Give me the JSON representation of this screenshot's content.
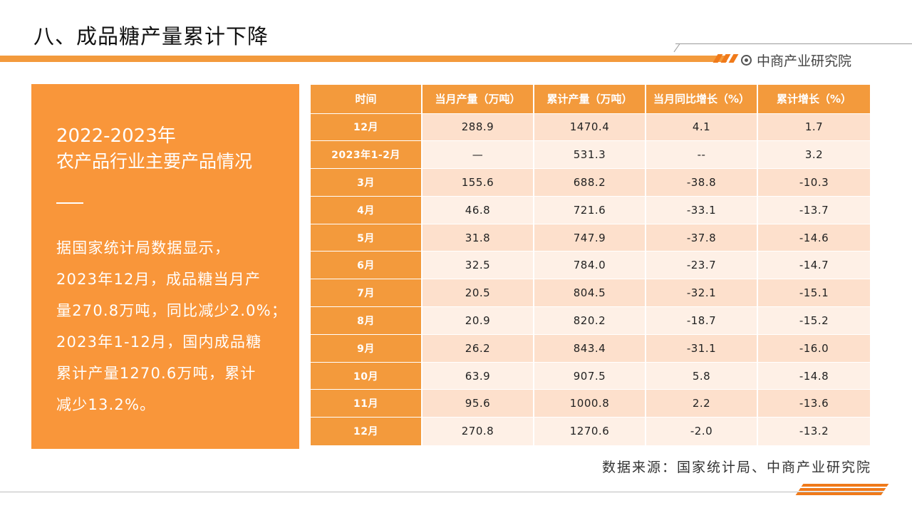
{
  "title": "八、成品糖产量累计下降",
  "brand": {
    "name": "中商产业研究院"
  },
  "panel": {
    "year": "2022-2023年",
    "subtitle": "农产品行业主要产品情况",
    "body_lines": [
      "据国家统计局数据显示，",
      "2023年12月，成品糖当月产",
      "量270.8万吨，同比减少2.0%；",
      "2023年1-12月，国内成品糖",
      "累计产量1270.6万吨，累计",
      "减少13.2%。"
    ]
  },
  "table": {
    "headers": [
      "时间",
      "当月产量（万吨）",
      "累计产量（万吨）",
      "当月同比增长（%）",
      "累计增长（%）"
    ],
    "rows": [
      [
        "12月",
        "288.9",
        "1470.4",
        "4.1",
        "1.7"
      ],
      [
        "2023年1-2月",
        "—",
        "531.3",
        "--",
        "3.2"
      ],
      [
        "3月",
        "155.6",
        "688.2",
        "-38.8",
        "-10.3"
      ],
      [
        "4月",
        "46.8",
        "721.6",
        "-33.1",
        "-13.7"
      ],
      [
        "5月",
        "31.8",
        "747.9",
        "-37.8",
        "-14.6"
      ],
      [
        "6月",
        "32.5",
        "784.0",
        "-23.7",
        "-14.7"
      ],
      [
        "7月",
        "20.5",
        "804.5",
        "-32.1",
        "-15.1"
      ],
      [
        "8月",
        "20.9",
        "820.2",
        "-18.7",
        "-15.2"
      ],
      [
        "9月",
        "26.2",
        "843.4",
        "-31.1",
        "-16.0"
      ],
      [
        "10月",
        "63.9",
        "907.5",
        "5.8",
        "-14.8"
      ],
      [
        "11月",
        "95.6",
        "1000.8",
        "2.2",
        "-13.6"
      ],
      [
        "12月",
        "270.8",
        "1270.6",
        "-2.0",
        "-13.2"
      ]
    ]
  },
  "source": "数据来源：国家统计局、中商产业研究院",
  "colors": {
    "accent": "#f39a3c",
    "row_even": "#fde0cc",
    "row_odd": "#fef0e6"
  }
}
